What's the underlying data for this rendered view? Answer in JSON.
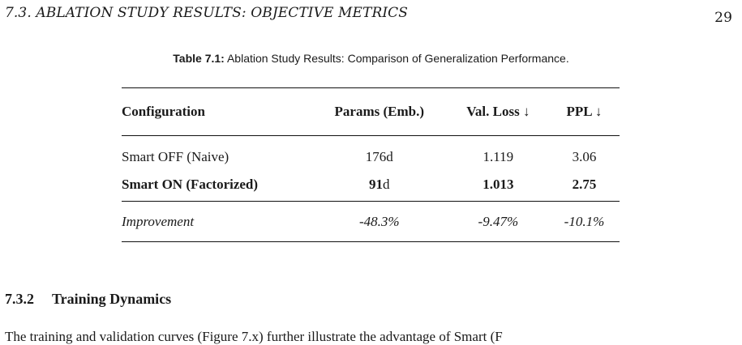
{
  "header": {
    "running_title": "7.3. ABLATION STUDY RESULTS: OBJECTIVE METRICS",
    "page_number": "29"
  },
  "table": {
    "caption_label": "Table 7.1:",
    "caption_text": "Ablation Study Results: Comparison of Generalization Performance.",
    "columns": [
      "Configuration",
      "Params (Emb.)",
      "Val. Loss ↓",
      "PPL ↓"
    ],
    "rows": [
      {
        "configuration": "Smart OFF (Naive)",
        "params_number": "176",
        "params_unit": "d",
        "val_loss": "1.119",
        "ppl": "3.06"
      },
      {
        "configuration": "Smart ON (Factorized)",
        "params_number": "91",
        "params_unit": "d",
        "val_loss": "1.013",
        "ppl": "2.75"
      }
    ],
    "improvement": {
      "label": "Improvement",
      "params": "-48.3%",
      "val_loss": "-9.47%",
      "ppl": "-10.1%"
    }
  },
  "section": {
    "number": "7.3.2",
    "title": "Training Dynamics"
  },
  "body_text_fragment": "The training and validation curves (Figure 7.x) further illustrate the advantage of Smart (F"
}
